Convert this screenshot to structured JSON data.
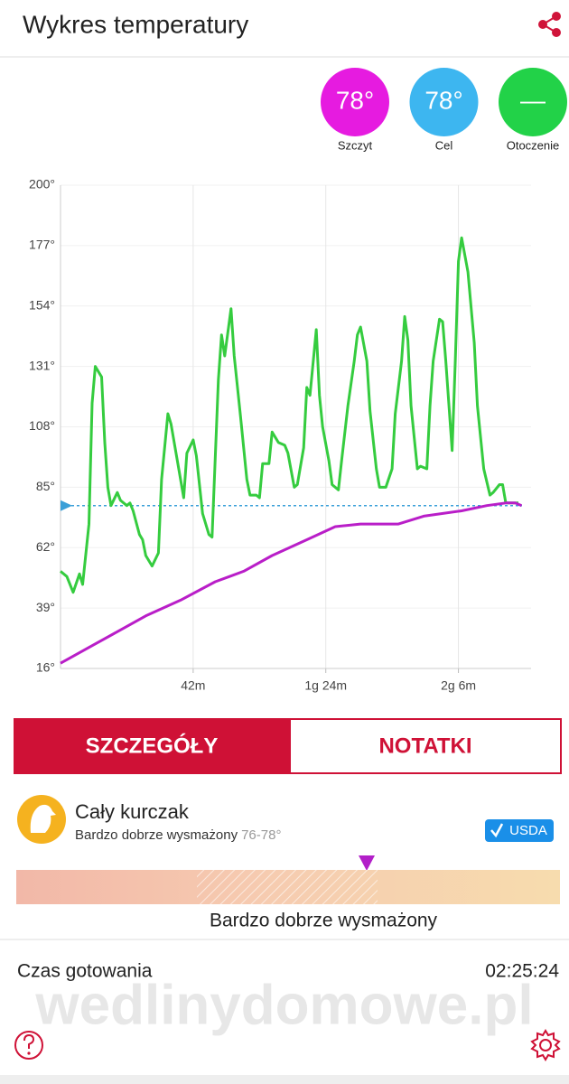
{
  "header": {
    "title": "Wykres temperatury"
  },
  "gauges": [
    {
      "value": "78°",
      "label": "Szczyt",
      "color": "#e61be0"
    },
    {
      "value": "78°",
      "label": "Cel",
      "color": "#3db6f0"
    },
    {
      "value": "—",
      "label": "Otoczenie",
      "color": "#22d248"
    }
  ],
  "chart_data": {
    "type": "line",
    "xlim": [
      0,
      149
    ],
    "ylim": [
      16,
      200
    ],
    "xticks": [
      {
        "value": 42,
        "label": "42m"
      },
      {
        "value": 84,
        "label": "1g 24m"
      },
      {
        "value": 126,
        "label": "2g 6m"
      }
    ],
    "yticks": [
      {
        "value": 16,
        "label": "16°"
      },
      {
        "value": 39,
        "label": "39°"
      },
      {
        "value": 62,
        "label": "62°"
      },
      {
        "value": 85,
        "label": "85°"
      },
      {
        "value": 108,
        "label": "108°"
      },
      {
        "value": 131,
        "label": "131°"
      },
      {
        "value": 154,
        "label": "154°"
      },
      {
        "value": 177,
        "label": "177°"
      },
      {
        "value": 200,
        "label": "200°"
      }
    ],
    "grid": true,
    "target": {
      "value": 78,
      "color": "#3a9fd8"
    },
    "series": [
      {
        "color": "#35cc3f",
        "x": [
          0,
          2,
          4,
          6,
          7,
          9,
          10,
          11,
          13,
          14,
          15,
          16,
          18,
          19,
          21,
          22,
          23,
          25,
          26,
          27,
          29,
          31,
          32,
          34,
          35,
          37,
          39,
          40,
          42,
          43,
          45,
          47,
          48,
          50,
          51,
          52,
          54,
          55,
          57,
          59,
          60,
          62,
          63,
          64,
          66,
          67,
          69,
          71,
          72,
          74,
          75,
          77,
          78,
          79,
          81,
          82,
          83,
          85,
          86,
          88,
          89,
          91,
          93,
          94,
          95,
          97,
          98,
          100,
          101,
          103,
          105,
          106,
          108,
          109,
          110,
          111,
          113,
          114,
          116,
          117,
          118,
          120,
          121,
          122,
          124,
          125,
          126,
          127,
          129,
          131,
          132,
          134,
          136,
          137,
          139,
          140,
          141,
          144,
          145
        ],
        "values": [
          53,
          51,
          45,
          52,
          48,
          71,
          117,
          131,
          127,
          102,
          85,
          78,
          83,
          80,
          78,
          79,
          76,
          67,
          65,
          59,
          55,
          60,
          88,
          113,
          109,
          95,
          81,
          98,
          103,
          97,
          75,
          67,
          66,
          126,
          143,
          135,
          153,
          135,
          112,
          88,
          82,
          82,
          81,
          94,
          94,
          106,
          102,
          101,
          98,
          85,
          86,
          100,
          123,
          120,
          145,
          120,
          108,
          95,
          86,
          84,
          95,
          116,
          133,
          143,
          146,
          133,
          114,
          92,
          85,
          85,
          92,
          113,
          133,
          150,
          141,
          116,
          92,
          93,
          92,
          116,
          133,
          149,
          148,
          133,
          99,
          133,
          171,
          180,
          167,
          140,
          116,
          92,
          82,
          83,
          86,
          86,
          79,
          79,
          79
        ]
      },
      {
        "color": "#b91ec8",
        "x": [
          0,
          9,
          18,
          27,
          38,
          49,
          58,
          67,
          78,
          87,
          95,
          107,
          115,
          127,
          135,
          141,
          144,
          146
        ],
        "values": [
          18,
          24,
          30,
          36,
          42,
          49,
          53,
          59,
          65,
          70,
          71,
          71,
          74,
          76,
          78,
          79,
          79,
          78
        ]
      }
    ]
  },
  "tabs": [
    "SZCZEGÓŁY",
    "NOTATKI"
  ],
  "product": {
    "name": "Cały kurczak",
    "doneness": "Bardzo dobrze wysmażony",
    "range": "76-78°",
    "badge": "USDA"
  },
  "doneness_bar_label": "Bardzo dobrze wysmażony",
  "cooking_time": {
    "label": "Czas gotowania",
    "value": "02:25:24"
  },
  "watermark": "wedlinydomowe.pl"
}
